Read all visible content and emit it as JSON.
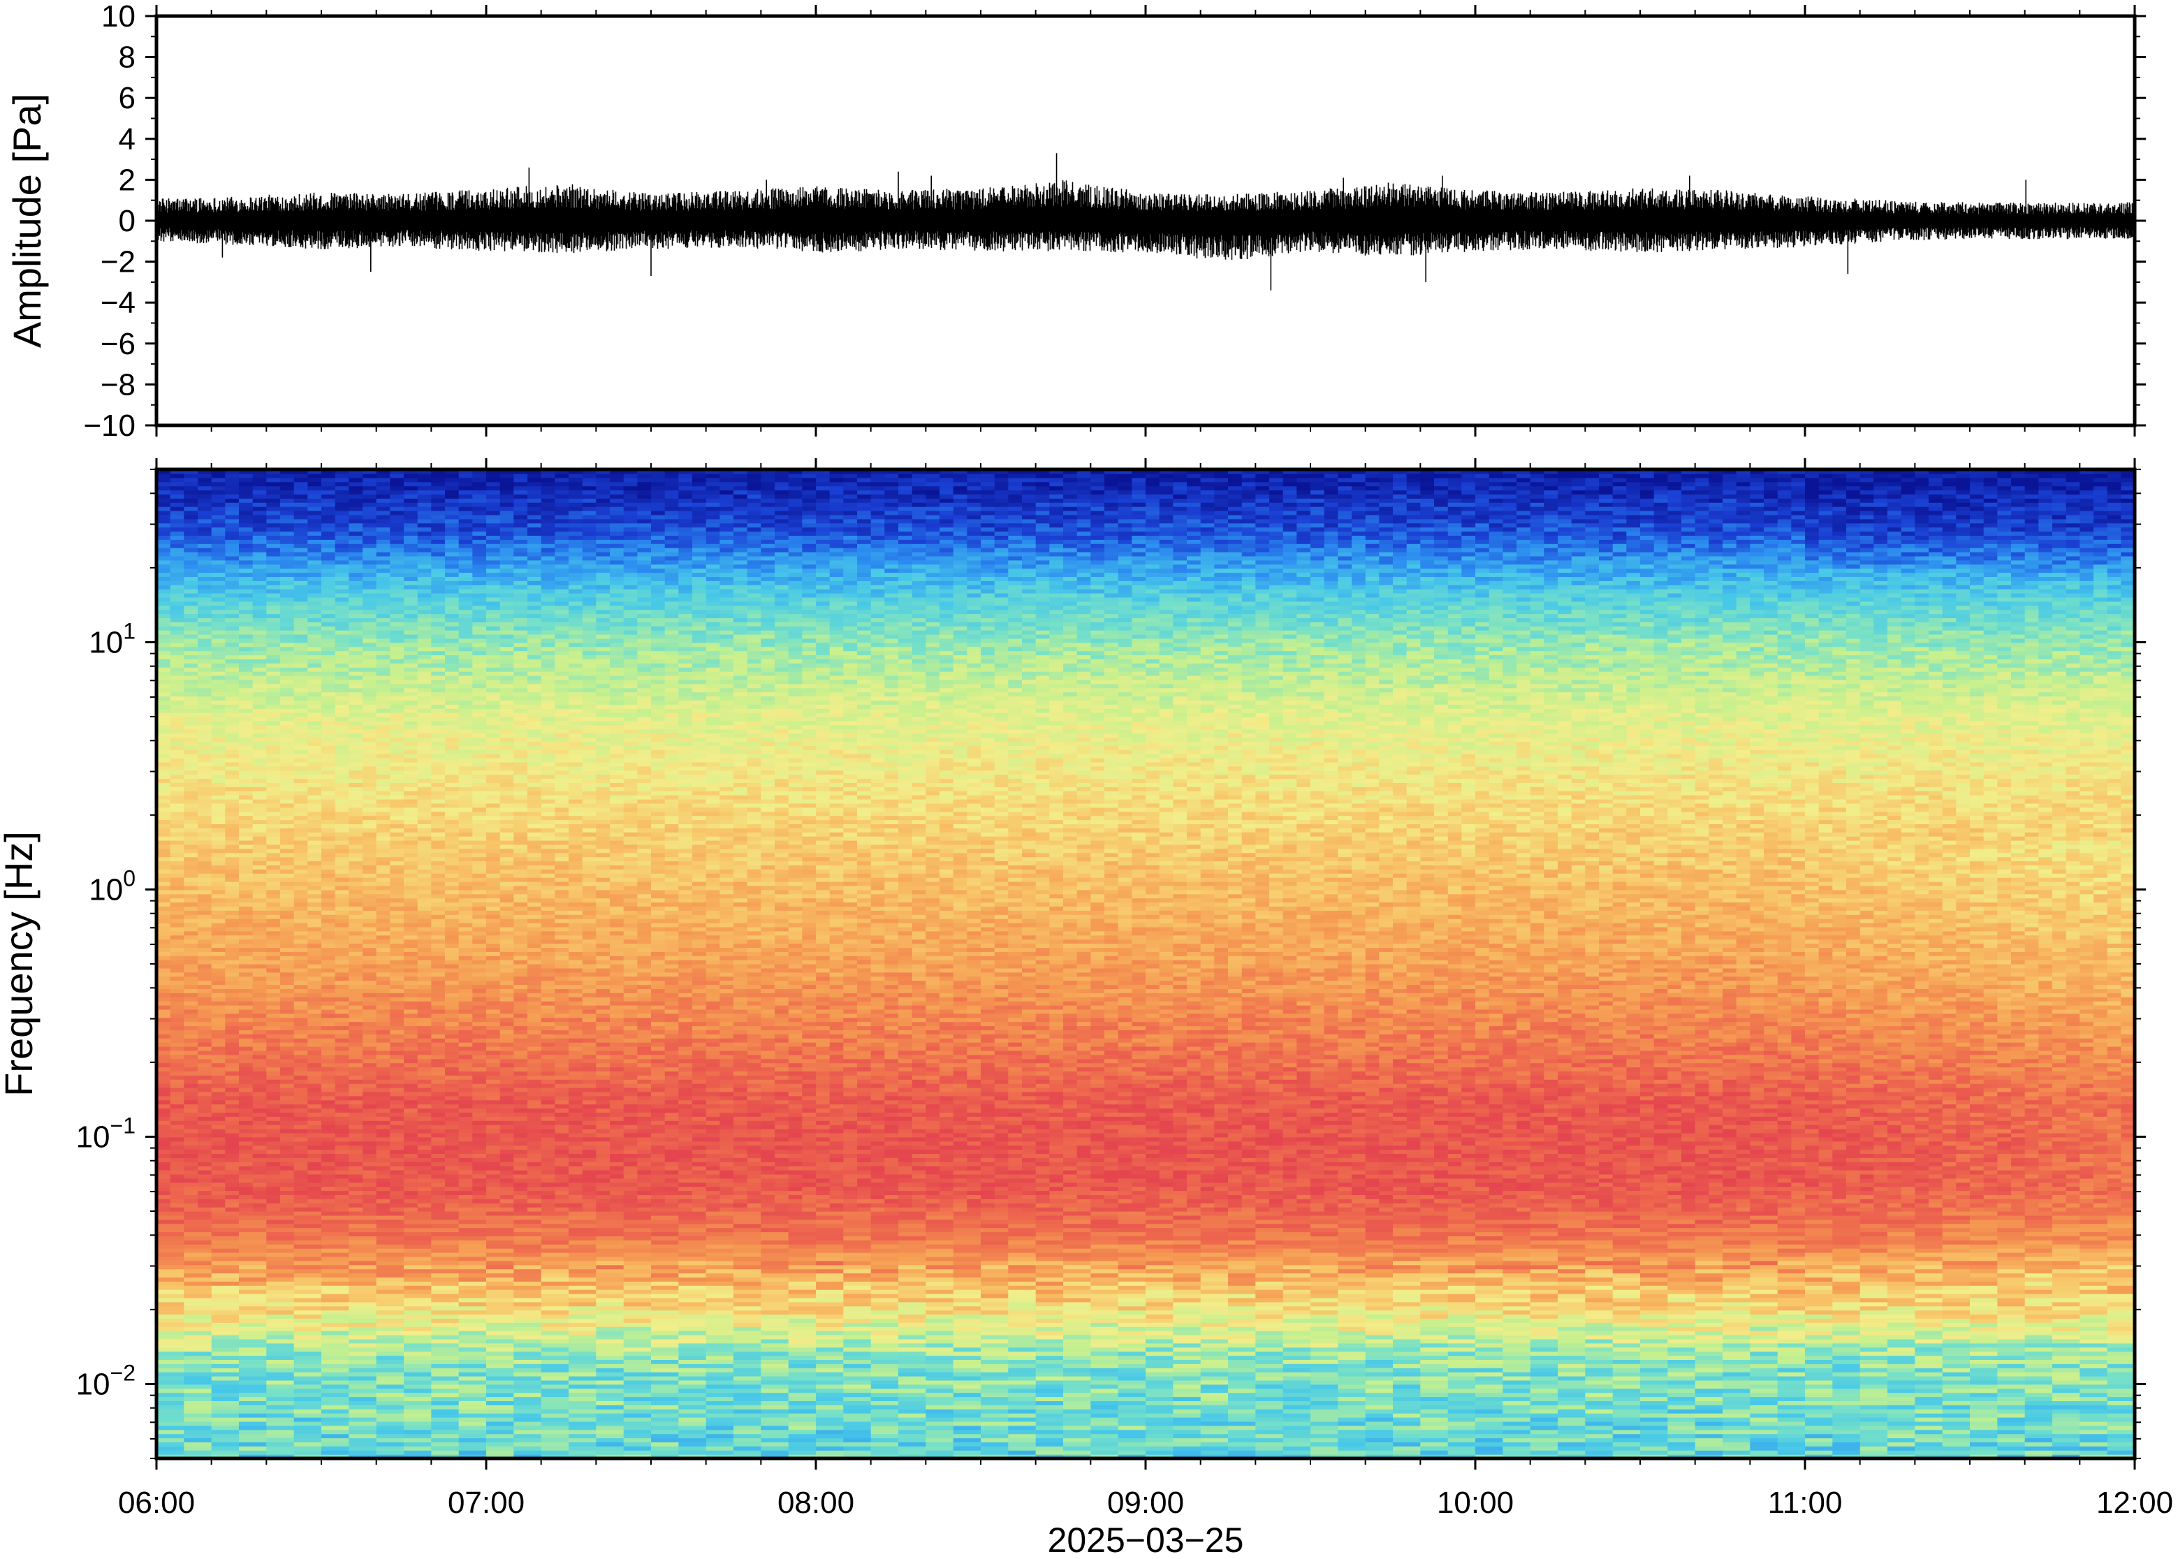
{
  "chart_data": [
    {
      "type": "line",
      "ylabel": "Amplitude [Pa]",
      "ylim": [
        -10,
        10
      ],
      "y_ticks": [
        "10",
        "8",
        "6",
        "4",
        "2",
        "0",
        "−2",
        "−4",
        "−6",
        "−8",
        "−10"
      ],
      "y_tick_values": [
        10,
        8,
        6,
        4,
        2,
        0,
        -2,
        -4,
        -6,
        -8,
        -10
      ],
      "x_range_hours": [
        6,
        12
      ],
      "series": [
        {
          "color": "#000000",
          "style": "dense waveform",
          "time_hours": [
            6.0,
            6.25,
            6.5,
            6.75,
            7.0,
            7.25,
            7.5,
            7.75,
            8.0,
            8.25,
            8.5,
            8.75,
            9.0,
            9.25,
            9.5,
            9.75,
            10.0,
            10.25,
            10.5,
            10.75,
            11.0,
            11.25,
            11.5,
            11.75,
            12.0
          ],
          "envelope_max": [
            1.1,
            1.2,
            1.4,
            1.3,
            1.6,
            1.8,
            1.3,
            1.5,
            1.7,
            1.5,
            1.6,
            2.0,
            1.4,
            1.3,
            1.5,
            1.9,
            1.5,
            1.4,
            1.6,
            1.5,
            1.2,
            1.0,
            0.9,
            0.9,
            0.9
          ],
          "envelope_min": [
            -1.0,
            -1.2,
            -1.4,
            -1.3,
            -1.5,
            -1.6,
            -1.4,
            -1.3,
            -1.6,
            -1.4,
            -1.5,
            -1.5,
            -1.6,
            -2.0,
            -1.5,
            -1.8,
            -1.5,
            -1.4,
            -1.6,
            -1.4,
            -1.3,
            -1.0,
            -0.9,
            -0.9,
            -0.9
          ],
          "spikes": [
            {
              "t": 6.2,
              "v": -1.8
            },
            {
              "t": 6.65,
              "v": -2.5
            },
            {
              "t": 7.13,
              "v": 2.6
            },
            {
              "t": 7.5,
              "v": -2.7
            },
            {
              "t": 7.85,
              "v": 2.0
            },
            {
              "t": 8.25,
              "v": 2.4
            },
            {
              "t": 8.35,
              "v": 2.2
            },
            {
              "t": 8.73,
              "v": 3.3
            },
            {
              "t": 9.38,
              "v": -3.4
            },
            {
              "t": 9.6,
              "v": 2.1
            },
            {
              "t": 9.85,
              "v": -3.0
            },
            {
              "t": 9.9,
              "v": 2.2
            },
            {
              "t": 10.65,
              "v": 2.2
            },
            {
              "t": 11.13,
              "v": -2.6
            },
            {
              "t": 11.67,
              "v": 2.0
            }
          ]
        }
      ]
    },
    {
      "type": "heatmap",
      "ylabel": "Frequency [Hz]",
      "xlabel": "2025−03−25",
      "y_scale": "log",
      "ylim_hz": [
        0.005,
        50
      ],
      "y_ticks": [
        {
          "base": "10",
          "exp": "1",
          "value": 10
        },
        {
          "base": "10",
          "exp": "0",
          "value": 1
        },
        {
          "base": "10",
          "exp": "−1",
          "value": 0.1
        },
        {
          "base": "10",
          "exp": "−2",
          "value": 0.01
        }
      ],
      "x_ticks": [
        "06:00",
        "07:00",
        "08:00",
        "09:00",
        "10:00",
        "11:00",
        "12:00"
      ],
      "x_tick_hours": [
        6,
        7,
        8,
        9,
        10,
        11,
        12
      ],
      "colormap": [
        "#0a1496",
        "#1a3fd2",
        "#2c8cf0",
        "#48c8e8",
        "#76e0c8",
        "#c6f08e",
        "#f2ee8a",
        "#f8c468",
        "#f59a52",
        "#ee6a4e",
        "#e4454e"
      ],
      "legend": "none",
      "intensity_profile": {
        "log10_freq": [
          1.7,
          1.45,
          1.2,
          1.0,
          0.7,
          0.4,
          0.0,
          -0.3,
          -0.6,
          -0.85,
          -1.0,
          -1.2,
          -1.4,
          -1.55,
          -1.75,
          -1.9,
          -2.3
        ],
        "level": [
          0.02,
          0.12,
          0.32,
          0.44,
          0.56,
          0.63,
          0.72,
          0.78,
          0.86,
          0.94,
          0.96,
          0.95,
          0.88,
          0.76,
          0.58,
          0.42,
          0.36
        ]
      },
      "notes": "Power spectral density; high-frequency band (>20 Hz) dark blue, peak energy (red) around 0.05–0.3 Hz, weaker near 0.005–0.01 Hz; slightly lower energy after 11:00."
    }
  ]
}
